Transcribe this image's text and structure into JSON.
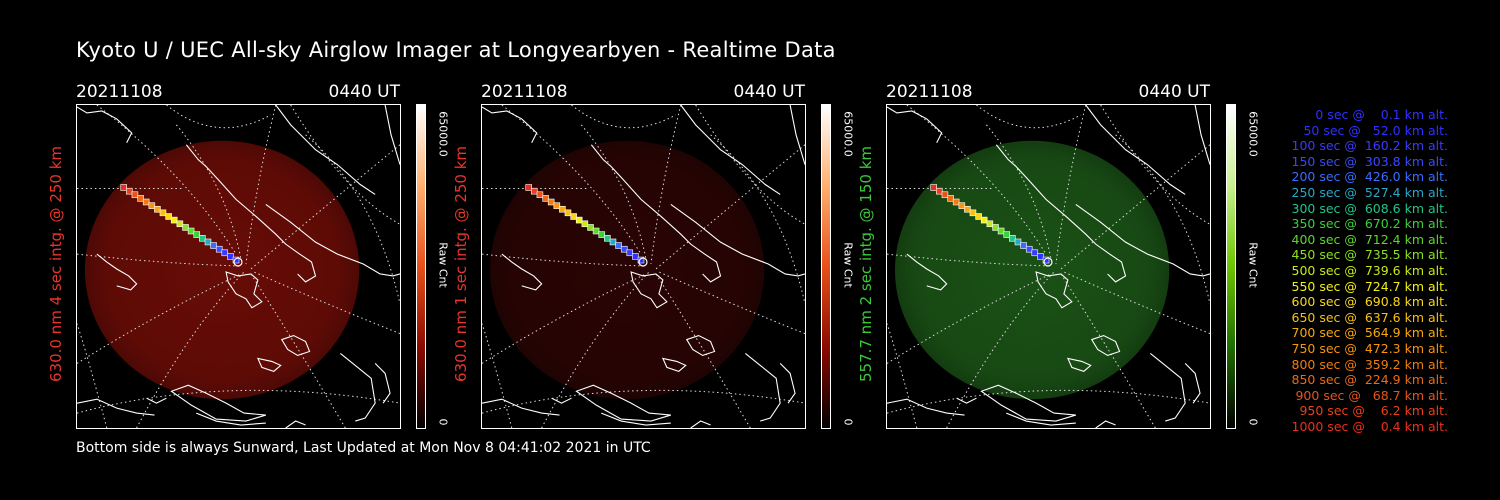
{
  "title": "Kyoto U / UEC All-sky Airglow Imager at Longyearbyen - Realtime Data",
  "footer": "Bottom side is always Sunward, Last Updated at Mon Nov  8 04:41:02 2021 in UTC",
  "panels": [
    {
      "date": "20211108",
      "time": "0440 UT",
      "side_label": "630.0 nm 4 sec intg. @ 250 km",
      "side_color": "#e8352a",
      "glow_color": "#7a0e08",
      "glow_opacity": 0.85,
      "cbar_max": "65000.0",
      "cbar_unit": "Raw Cnt",
      "cbar_min": "0",
      "cbar_gradient": [
        "#000000",
        "#8b0a00",
        "#e8501a",
        "#ffb070",
        "#ffffff"
      ]
    },
    {
      "date": "20211108",
      "time": "0440 UT",
      "side_label": "630.0 nm 1 sec intg. @ 250 km",
      "side_color": "#e8352a",
      "glow_color": "#2e0504",
      "glow_opacity": 0.9,
      "cbar_max": "65000.0",
      "cbar_unit": "Raw Cnt",
      "cbar_min": "0",
      "cbar_gradient": [
        "#000000",
        "#8b0a00",
        "#e8501a",
        "#ffb070",
        "#ffffff"
      ]
    },
    {
      "date": "20211108",
      "time": "0440 UT",
      "side_label": "557.7 nm 2 sec intg. @ 150 km",
      "side_color": "#3cc83c",
      "glow_color": "#1d5a18",
      "glow_opacity": 0.9,
      "cbar_max": "65000.0",
      "cbar_unit": "Raw Cnt",
      "cbar_min": "0",
      "cbar_gradient": [
        "#000000",
        "#1f6d00",
        "#6cc400",
        "#c8f090",
        "#ffffff"
      ]
    }
  ],
  "trajectory_legend": [
    {
      "text": "0 sec @    0.1 km alt.",
      "color": "#3030ff"
    },
    {
      "text": "50 sec @   52.0 km alt.",
      "color": "#3030ff"
    },
    {
      "text": "100 sec @  160.2 km alt.",
      "color": "#3a3aff"
    },
    {
      "text": "150 sec @  303.8 km alt.",
      "color": "#3a48ff"
    },
    {
      "text": "200 sec @  426.0 km alt.",
      "color": "#3a6cff"
    },
    {
      "text": "250 sec @  527.4 km alt.",
      "color": "#2aa6c8"
    },
    {
      "text": "300 sec @  608.6 km alt.",
      "color": "#22c48a"
    },
    {
      "text": "350 sec @  670.2 km alt.",
      "color": "#3ad03a"
    },
    {
      "text": "400 sec @  712.4 km alt.",
      "color": "#5ad82a"
    },
    {
      "text": "450 sec @  735.5 km alt.",
      "color": "#8ce020"
    },
    {
      "text": "500 sec @  739.6 km alt.",
      "color": "#c8e818"
    },
    {
      "text": "550 sec @  724.7 km alt.",
      "color": "#f0f018"
    },
    {
      "text": "600 sec @  690.8 km alt.",
      "color": "#f8d818"
    },
    {
      "text": "650 sec @  637.6 km alt.",
      "color": "#f8c010"
    },
    {
      "text": "700 sec @  564.9 km alt.",
      "color": "#f8a810"
    },
    {
      "text": "750 sec @  472.3 km alt.",
      "color": "#f89410"
    },
    {
      "text": "800 sec @  359.2 km alt.",
      "color": "#f07c10"
    },
    {
      "text": "850 sec @  224.9 km alt.",
      "color": "#ec6a14"
    },
    {
      "text": "900 sec @   68.7 km alt.",
      "color": "#e85418"
    },
    {
      "text": "950 sec @    6.2 km alt.",
      "color": "#e8401c"
    },
    {
      "text": "1000 sec @    0.4 km alt.",
      "color": "#e83020"
    }
  ]
}
